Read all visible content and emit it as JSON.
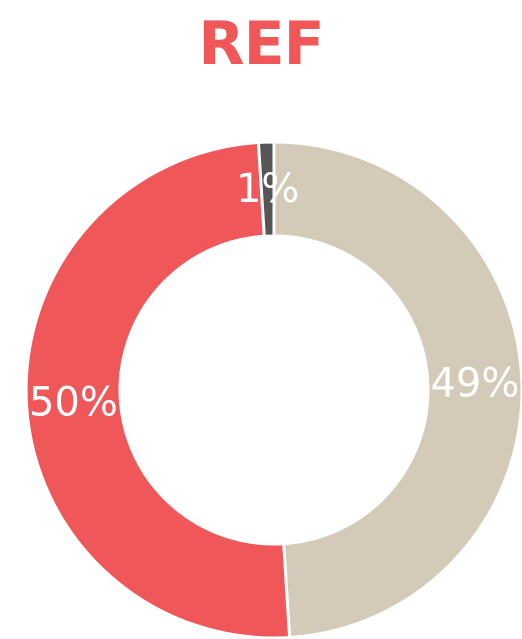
{
  "chart_data": {
    "type": "pie",
    "title": "REF",
    "donut": true,
    "categories": [
      "",
      "",
      ""
    ],
    "values": [
      49,
      50,
      1
    ],
    "labels": [
      "49%",
      "50%",
      "1%"
    ],
    "colors": [
      "#d3cbb7",
      "#ef5758",
      "#565656"
    ],
    "title_color": "#ef5758",
    "start": "top",
    "direction": "clockwise"
  }
}
